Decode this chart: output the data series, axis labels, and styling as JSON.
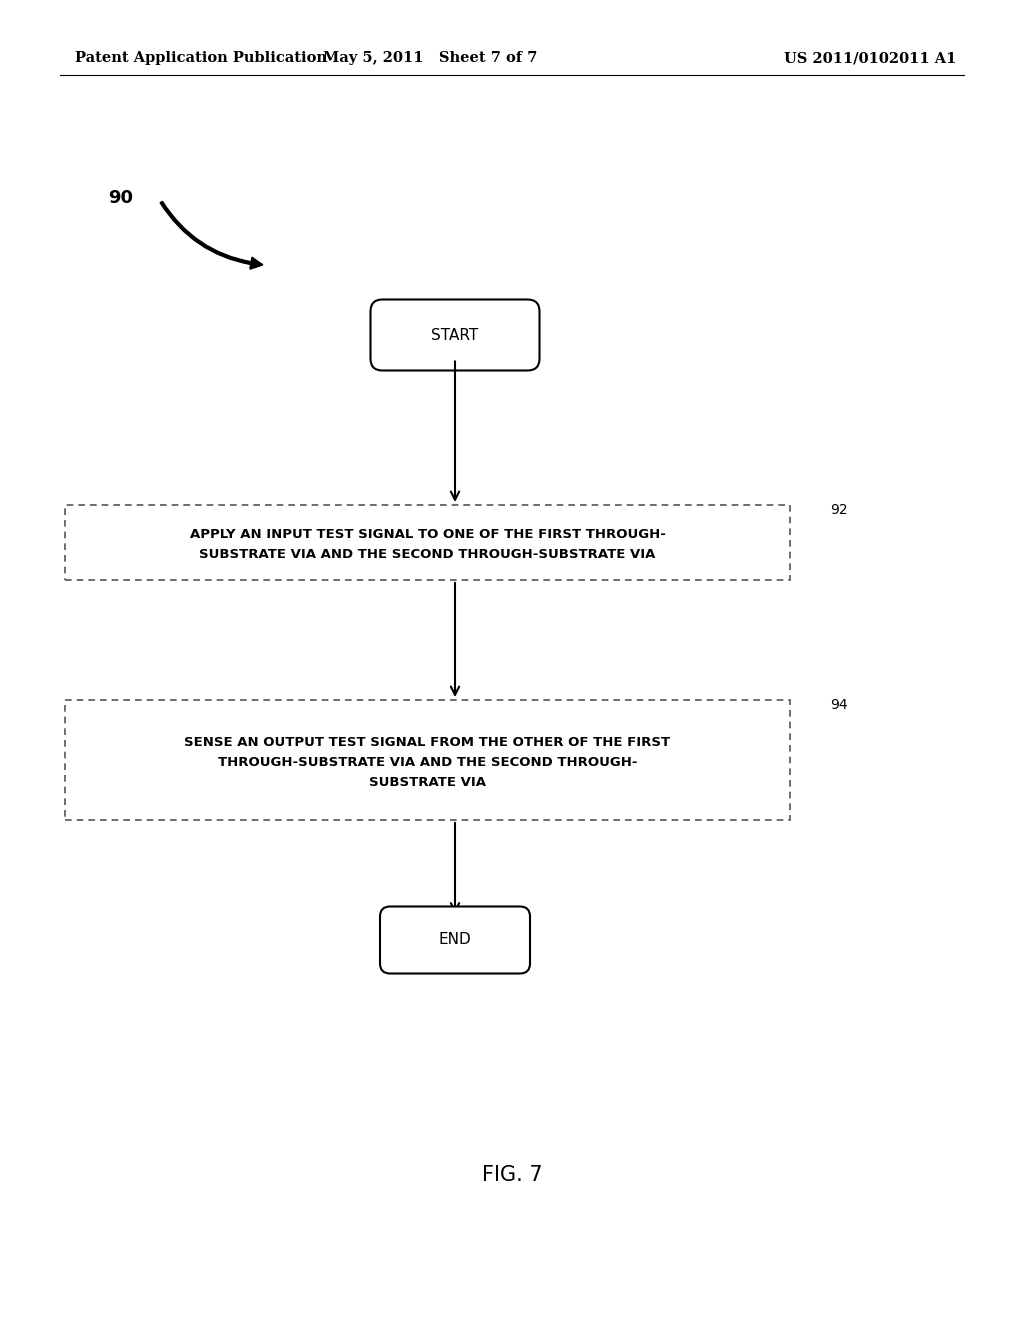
{
  "background_color": "#ffffff",
  "header_left": "Patent Application Publication",
  "header_center": "May 5, 2011   Sheet 7 of 7",
  "header_right": "US 2011/0102011 A1",
  "header_fontsize": 10.5,
  "diagram_label": "90",
  "figure_label": "FIG. 7",
  "start_text": "START",
  "end_text": "END",
  "box1_line1": "APPLY AN INPUT TEST SIGNAL TO ONE OF THE FIRST THROUGH-",
  "box1_line2": "SUBSTRATE VIA AND THE SECOND THROUGH-SUBSTRATE VIA",
  "box2_line1": "SENSE AN OUTPUT TEST SIGNAL FROM THE OTHER OF THE FIRST",
  "box2_line2": "THROUGH-SUBSTRATE VIA AND THE SECOND THROUGH-",
  "box2_line3": "SUBSTRATE VIA",
  "label_92": "92",
  "label_94": "94"
}
